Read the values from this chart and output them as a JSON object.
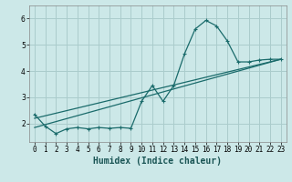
{
  "xlabel": "Humidex (Indice chaleur)",
  "bg_color": "#cce8e8",
  "grid_color": "#aacccc",
  "line_color": "#1a6b6b",
  "xlim": [
    -0.5,
    23.5
  ],
  "ylim": [
    1.3,
    6.5
  ],
  "yticks": [
    2,
    3,
    4,
    5,
    6
  ],
  "xticks": [
    0,
    1,
    2,
    3,
    4,
    5,
    6,
    7,
    8,
    9,
    10,
    11,
    12,
    13,
    14,
    15,
    16,
    17,
    18,
    19,
    20,
    21,
    22,
    23
  ],
  "series1_x": [
    0,
    1,
    2,
    3,
    4,
    5,
    6,
    7,
    8,
    9,
    10,
    11,
    12,
    13,
    14,
    15,
    16,
    17,
    18,
    19,
    20,
    21,
    22,
    23
  ],
  "series1_y": [
    2.35,
    1.9,
    1.62,
    1.8,
    1.85,
    1.8,
    1.85,
    1.82,
    1.85,
    1.82,
    2.85,
    3.45,
    2.85,
    3.45,
    4.65,
    5.6,
    5.93,
    5.72,
    5.15,
    4.35,
    4.35,
    4.42,
    4.45,
    4.45
  ],
  "series2_x": [
    0,
    23
  ],
  "series2_y": [
    2.2,
    4.45
  ],
  "series3_x": [
    0,
    23
  ],
  "series3_y": [
    1.85,
    4.45
  ]
}
